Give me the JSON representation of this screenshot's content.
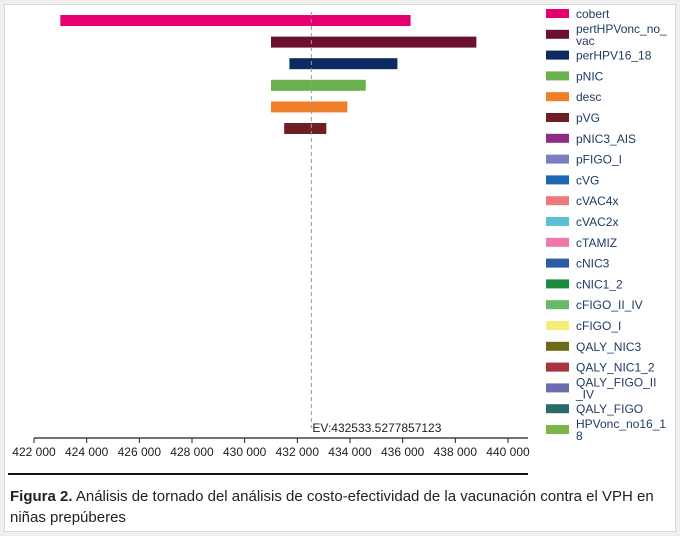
{
  "chart_data": {
    "type": "tornado",
    "base_value": 432533.5277857123,
    "ev_label": "EV:432533.5277857123",
    "xlim": [
      422000,
      440000
    ],
    "xticks": [
      "422 000",
      "424 000",
      "426 000",
      "428 000",
      "430 000",
      "432 000",
      "434 000",
      "436 000",
      "438 000",
      "440 000"
    ],
    "bars": [
      {
        "name": "cobert",
        "low": 423000,
        "high": 436300,
        "color": "#e6006f"
      },
      {
        "name": "pertHPVonc_no_vac",
        "low": 431000,
        "high": 438800,
        "color": "#6b1030"
      },
      {
        "name": "perHPV16_18",
        "low": 431700,
        "high": 435800,
        "color": "#0d2a63"
      },
      {
        "name": "pNIC",
        "low": 431000,
        "high": 434600,
        "color": "#6ab04c"
      },
      {
        "name": "desc",
        "low": 431000,
        "high": 433900,
        "color": "#f07f2a"
      },
      {
        "name": "pVG",
        "low": 431500,
        "high": 433100,
        "color": "#6e1f24"
      }
    ],
    "legend": [
      {
        "label": "cobert",
        "color": "#e6006f"
      },
      {
        "label": "pertHPVonc_no_\nvac",
        "color": "#6b1030"
      },
      {
        "label": "perHPV16_18",
        "color": "#0d2a63"
      },
      {
        "label": "pNIC",
        "color": "#6ab04c"
      },
      {
        "label": "desc",
        "color": "#f07f2a"
      },
      {
        "label": "pVG",
        "color": "#6e1f24"
      },
      {
        "label": "pNIC3_AIS",
        "color": "#8e2b84"
      },
      {
        "label": "pFIGO_I",
        "color": "#7a7fbf"
      },
      {
        "label": "cVG",
        "color": "#1a67b3"
      },
      {
        "label": "cVAC4x",
        "color": "#ef7878"
      },
      {
        "label": "cVAC2x",
        "color": "#5bc0d4"
      },
      {
        "label": "cTAMIZ",
        "color": "#ef78a8"
      },
      {
        "label": "cNIC3",
        "color": "#2b5aa8"
      },
      {
        "label": "cNIC1_2",
        "color": "#1a8a3e"
      },
      {
        "label": "cFIGO_II_IV",
        "color": "#6ab86a"
      },
      {
        "label": "cFIGO_I",
        "color": "#f4ee76"
      },
      {
        "label": "QALY_NIC3",
        "color": "#6b6a1a"
      },
      {
        "label": "QALY_NIC1_2",
        "color": "#a8343c"
      },
      {
        "label": "QALY_FIGO_II\n_IV",
        "color": "#6c6cb0"
      },
      {
        "label": "QALY_FIGO",
        "color": "#2a6a6a"
      },
      {
        "label": "HPVonc_no16_1\n8",
        "color": "#7ab648"
      }
    ]
  },
  "caption": {
    "prefix": "Figura 2.",
    "text": " Análisis de tornado del análisis de costo-efectividad de la vacunación contra el VPH en niñas prepúberes"
  }
}
